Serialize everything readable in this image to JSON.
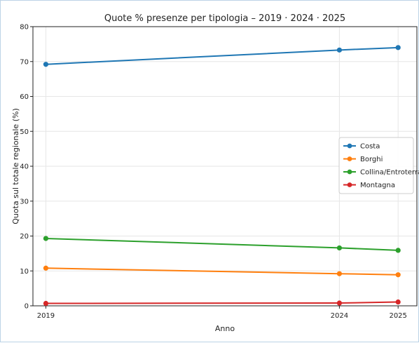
{
  "chart_data": {
    "type": "line",
    "title": "Quote % presenze per tipologia – 2019 · 2024 · 2025",
    "xlabel": "Anno",
    "ylabel": "Quota sul totale regionale (%)",
    "x": [
      2019,
      2024,
      2025
    ],
    "x_tick_labels": [
      "2019",
      "2024",
      "2025"
    ],
    "xlim": [
      2018.78,
      2025.32
    ],
    "ylim": [
      0,
      80
    ],
    "y_ticks": [
      0,
      10,
      20,
      30,
      40,
      50,
      60,
      70,
      80
    ],
    "grid": true,
    "legend_position": "right",
    "series": [
      {
        "name": "Costa",
        "color": "#1f77b4",
        "values": [
          69.2,
          73.3,
          74.0
        ]
      },
      {
        "name": "Borghi",
        "color": "#ff7f0e",
        "values": [
          10.8,
          9.2,
          8.9
        ]
      },
      {
        "name": "Collina/Entroterra",
        "color": "#2ca02c",
        "values": [
          19.3,
          16.6,
          15.9
        ]
      },
      {
        "name": "Montagna",
        "color": "#d62728",
        "values": [
          0.7,
          0.8,
          1.1
        ]
      }
    ]
  }
}
